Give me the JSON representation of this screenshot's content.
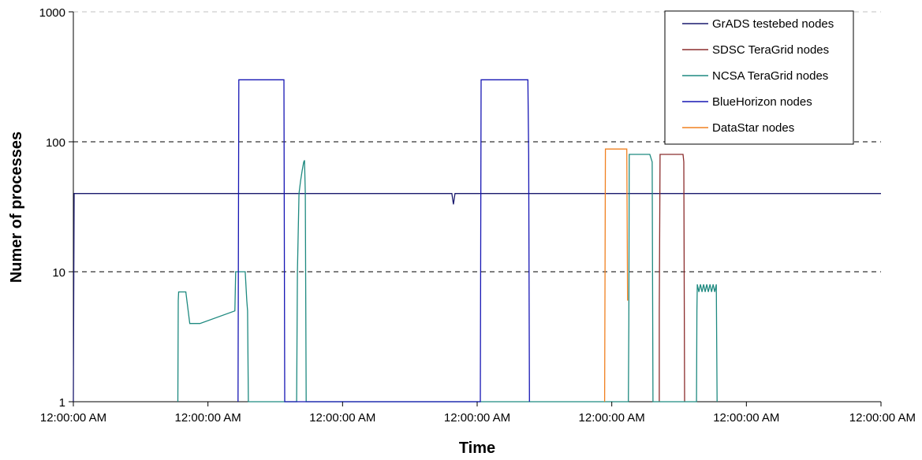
{
  "chart_data": {
    "type": "line",
    "xlabel": "Time",
    "ylabel": "Numer of processes",
    "y_scale": "log",
    "ylim": [
      1,
      1000
    ],
    "y_ticks": [
      "1",
      "10",
      "100",
      "1000"
    ],
    "x_ticks": [
      "12:00:00 AM",
      "12:00:00 AM",
      "12:00:00 AM",
      "12:00:00 AM",
      "12:00:00 AM",
      "12:00:00 AM",
      "12:00:00 AM"
    ],
    "grid": true,
    "legend_position": "top-right",
    "series": [
      {
        "name": "GrADS testebed nodes",
        "color": "#1a1a6e",
        "points": [
          [
            0,
            1
          ],
          [
            0.5,
            7
          ],
          [
            1,
            40
          ],
          [
            35,
            40
          ],
          [
            40,
            40
          ],
          [
            65,
            40
          ],
          [
            70,
            40
          ],
          [
            80,
            40
          ],
          [
            120,
            40
          ],
          [
            140,
            40
          ],
          [
            210,
            40
          ],
          [
            280,
            40
          ],
          [
            420,
            40
          ],
          [
            478,
            40
          ],
          [
            480,
            33
          ],
          [
            482,
            40
          ],
          [
            560,
            40
          ],
          [
            640,
            40
          ],
          [
            700,
            40
          ],
          [
            720,
            40
          ],
          [
            780,
            40
          ],
          [
            850,
            40
          ],
          [
            1000,
            40
          ],
          [
            1020,
            40
          ]
        ]
      },
      {
        "name": "SDSC TeraGrid nodes",
        "color": "#8b2d2d",
        "points": [
          [
            740,
            1
          ],
          [
            740,
            5
          ],
          [
            741,
            80
          ],
          [
            770,
            80
          ],
          [
            771,
            70
          ],
          [
            772,
            1
          ]
        ]
      },
      {
        "name": "NCSA TeraGrid nodes",
        "color": "#1f8a80",
        "points": [
          [
            132,
            1
          ],
          [
            132.5,
            6
          ],
          [
            133,
            7
          ],
          [
            142,
            7
          ],
          [
            147,
            4
          ],
          [
            160,
            4
          ],
          [
            204,
            5
          ],
          [
            205,
            10
          ],
          [
            217,
            10
          ],
          [
            219,
            6
          ],
          [
            220,
            5
          ],
          [
            221,
            1
          ],
          [
            282,
            1
          ],
          [
            283,
            10
          ],
          [
            285,
            40
          ],
          [
            287,
            50
          ],
          [
            289,
            60
          ],
          [
            291,
            70
          ],
          [
            292,
            72
          ],
          [
            293,
            40
          ],
          [
            294,
            1
          ],
          [
            701,
            1
          ],
          [
            701.5,
            4
          ],
          [
            702,
            80
          ],
          [
            728,
            80
          ],
          [
            731,
            70
          ],
          [
            732,
            1
          ],
          [
            787,
            1
          ],
          [
            787.5,
            5
          ],
          [
            788,
            8
          ],
          [
            790,
            7
          ],
          [
            792,
            8
          ],
          [
            794,
            7
          ],
          [
            796,
            8
          ],
          [
            798,
            7
          ],
          [
            800,
            8
          ],
          [
            802,
            7
          ],
          [
            804,
            8
          ],
          [
            806,
            7
          ],
          [
            808,
            8
          ],
          [
            810,
            7
          ],
          [
            812,
            8
          ],
          [
            813,
            1
          ]
        ]
      },
      {
        "name": "BlueHorizon nodes",
        "color": "#1616b4",
        "points": [
          [
            208,
            1
          ],
          [
            209,
            300
          ],
          [
            266,
            300
          ],
          [
            267,
            1
          ],
          [
            514,
            1
          ],
          [
            515,
            300
          ],
          [
            574,
            300
          ],
          [
            575,
            80
          ],
          [
            576,
            1
          ]
        ]
      },
      {
        "name": "DataStar nodes",
        "color": "#f08020",
        "points": [
          [
            671,
            1
          ],
          [
            672,
            88
          ],
          [
            699,
            88
          ],
          [
            700,
            6
          ]
        ]
      }
    ]
  }
}
